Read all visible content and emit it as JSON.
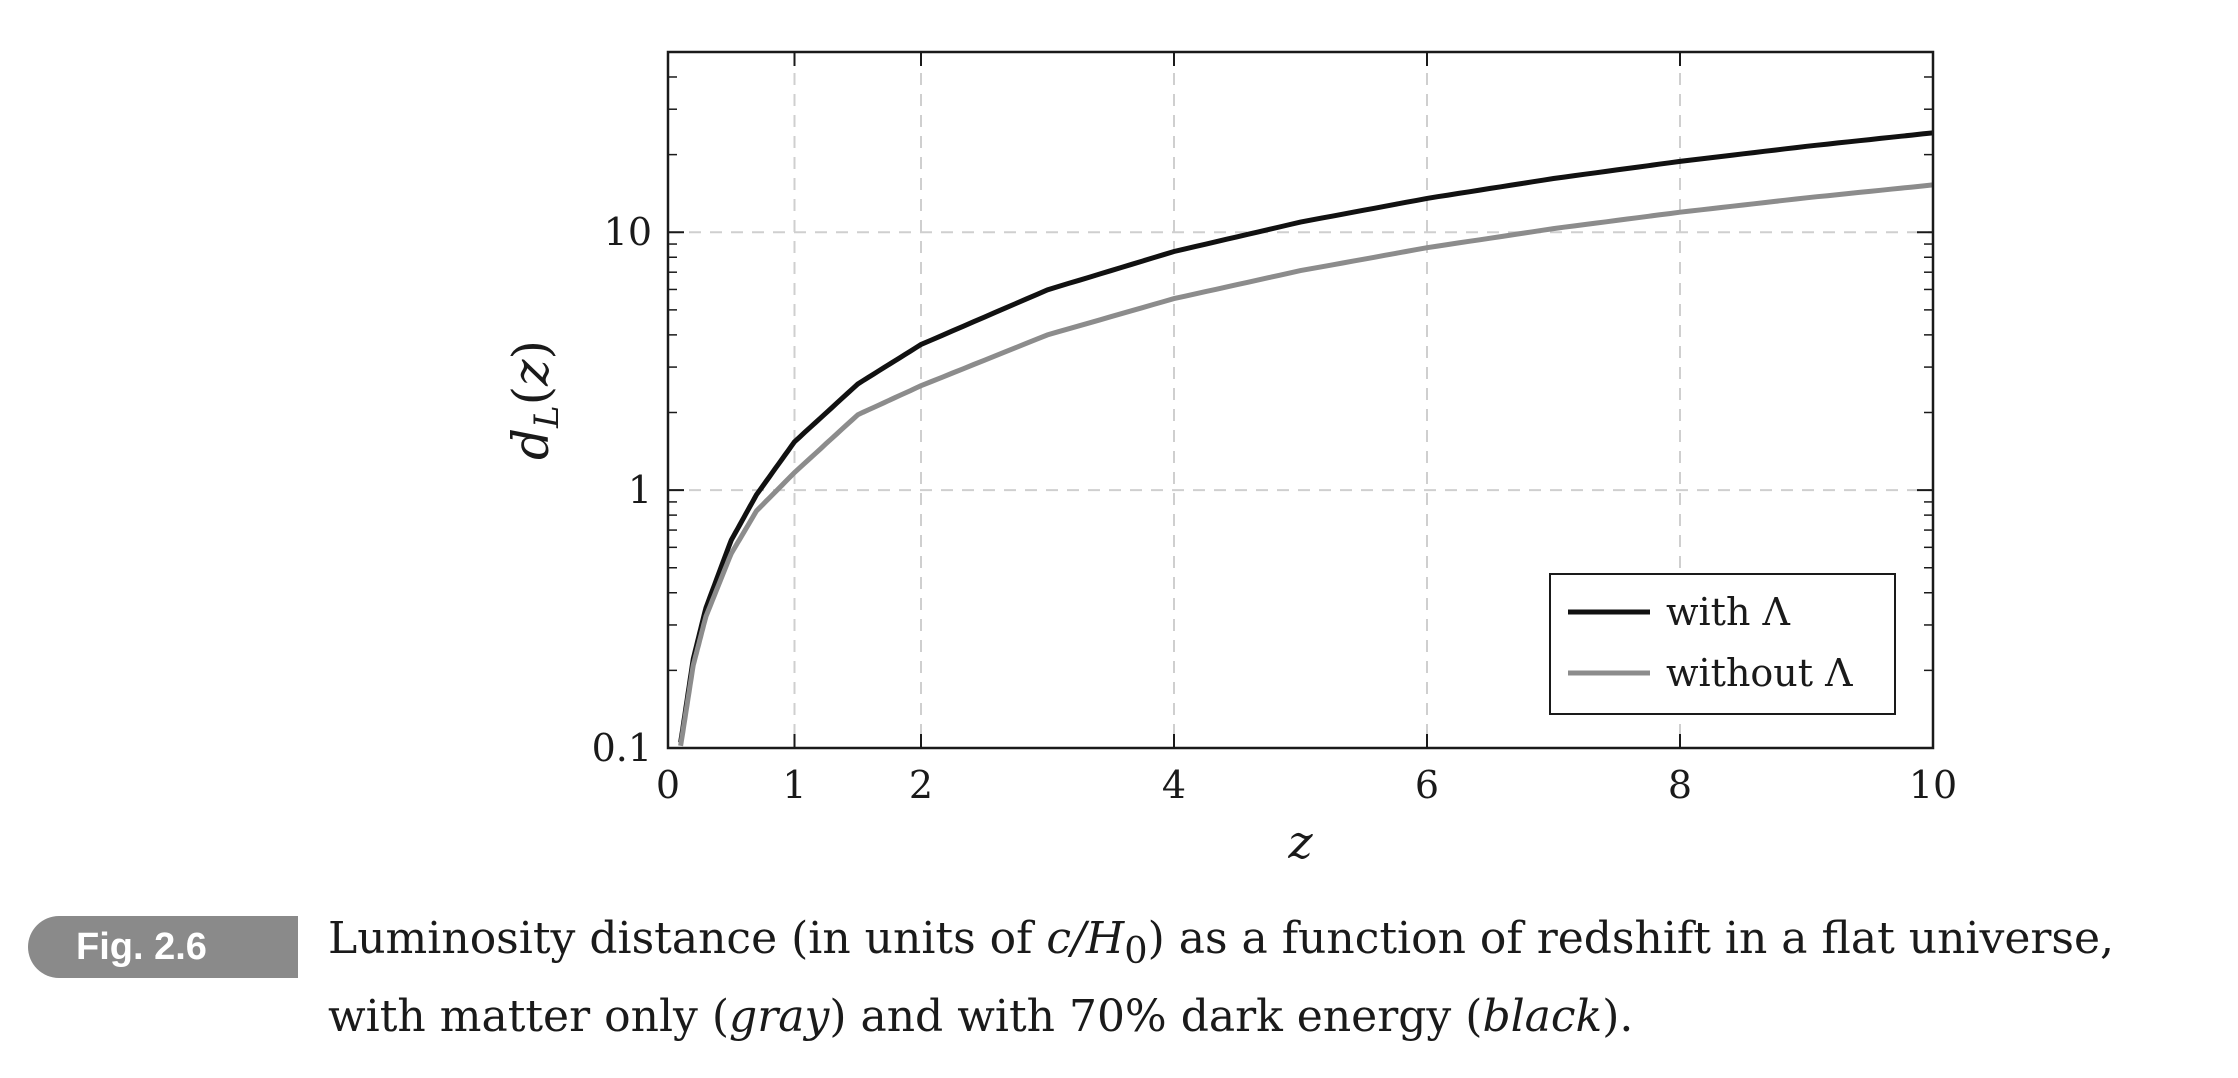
{
  "figure": {
    "label": "Fig. 2.6",
    "caption": {
      "line1_a": "Luminosity distance (in units of ",
      "line1_math": "c/H",
      "line1_sub": "0",
      "line1_b": ") as a function of redshift in a flat universe,",
      "line2_a": "with matter only (",
      "line2_gray": "gray",
      "line2_b": ") and with 70% dark energy (",
      "line2_black": "black",
      "line2_c": ")."
    }
  },
  "chart_data": {
    "type": "line",
    "title": "",
    "xlabel": "z",
    "ylabel": "d_L(z)",
    "xlim": [
      0,
      10
    ],
    "ylim": [
      0.1,
      50
    ],
    "yscale": "log",
    "grid": true,
    "x_ticks": [
      0,
      1,
      2,
      4,
      6,
      8,
      10
    ],
    "y_ticks": [
      0.1,
      1,
      10
    ],
    "y_tick_labels": [
      "0.1",
      "1",
      "10"
    ],
    "legend_position": "bottom-right",
    "series": [
      {
        "name": "with Λ",
        "color": "#111111",
        "x": [
          0.1,
          0.2,
          0.3,
          0.5,
          0.7,
          1,
          1.5,
          2,
          3,
          4,
          5,
          6,
          7,
          8,
          9,
          10
        ],
        "y": [
          0.105,
          0.222,
          0.35,
          0.64,
          0.96,
          1.54,
          2.58,
          3.67,
          5.98,
          8.42,
          10.95,
          13.53,
          16.16,
          18.83,
          21.54,
          24.3
        ]
      },
      {
        "name": "without Λ",
        "color": "#8c8c8c",
        "x": [
          0.1,
          0.2,
          0.3,
          0.5,
          0.7,
          1,
          1.5,
          2,
          3,
          4,
          5,
          6,
          7,
          8,
          9,
          10
        ],
        "y": [
          0.102,
          0.21,
          0.324,
          0.568,
          0.831,
          1.17,
          1.96,
          2.54,
          4.0,
          5.53,
          7.1,
          8.71,
          10.33,
          11.96,
          13.6,
          15.26
        ]
      }
    ]
  }
}
